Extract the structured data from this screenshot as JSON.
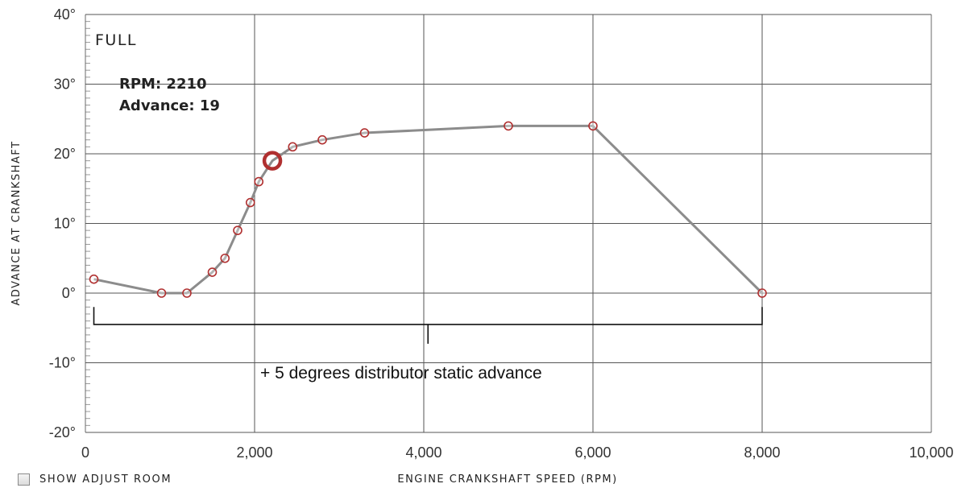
{
  "chart_data": {
    "type": "line",
    "mode_label": "FULL",
    "xlabel": "Engine Crankshaft Speed (rpm)",
    "ylabel": "Advance at Crankshaft",
    "xlim": [
      0,
      10000
    ],
    "ylim": [
      -20,
      40
    ],
    "x_ticks": [
      0,
      2000,
      4000,
      6000,
      8000,
      10000
    ],
    "x_tick_labels": [
      "0",
      "2,000",
      "4,000",
      "6,000",
      "8,000",
      "10,000"
    ],
    "y_ticks": [
      40,
      30,
      20,
      10,
      0,
      -10,
      -20
    ],
    "y_tick_labels": [
      "40°",
      "30°",
      "20°",
      "10°",
      "0°",
      "-10°",
      "-20°"
    ],
    "grid": true,
    "series": [
      {
        "x": [
          100,
          900,
          1200,
          1500,
          1650,
          1800,
          1950,
          2050,
          2210,
          2450,
          2800,
          3300,
          5000,
          6000,
          8000
        ],
        "y": [
          2,
          0,
          0,
          3,
          5,
          9,
          13,
          16,
          19,
          21,
          22,
          23,
          24,
          24,
          0
        ],
        "color": "#8c8c8c"
      }
    ],
    "marker_color": "#b03030",
    "selected_point": {
      "x": 2210,
      "y": 19
    },
    "tooltip": {
      "rpm_line": "RPM: 2210",
      "advance_line": "Advance: 19"
    },
    "annotation": {
      "text": "+ 5 degrees distributor static advance",
      "bracket_x": [
        100,
        8000
      ]
    }
  },
  "controls": {
    "show_adjust_room_label": "Show Adjust Room",
    "show_adjust_room_checked": false
  }
}
